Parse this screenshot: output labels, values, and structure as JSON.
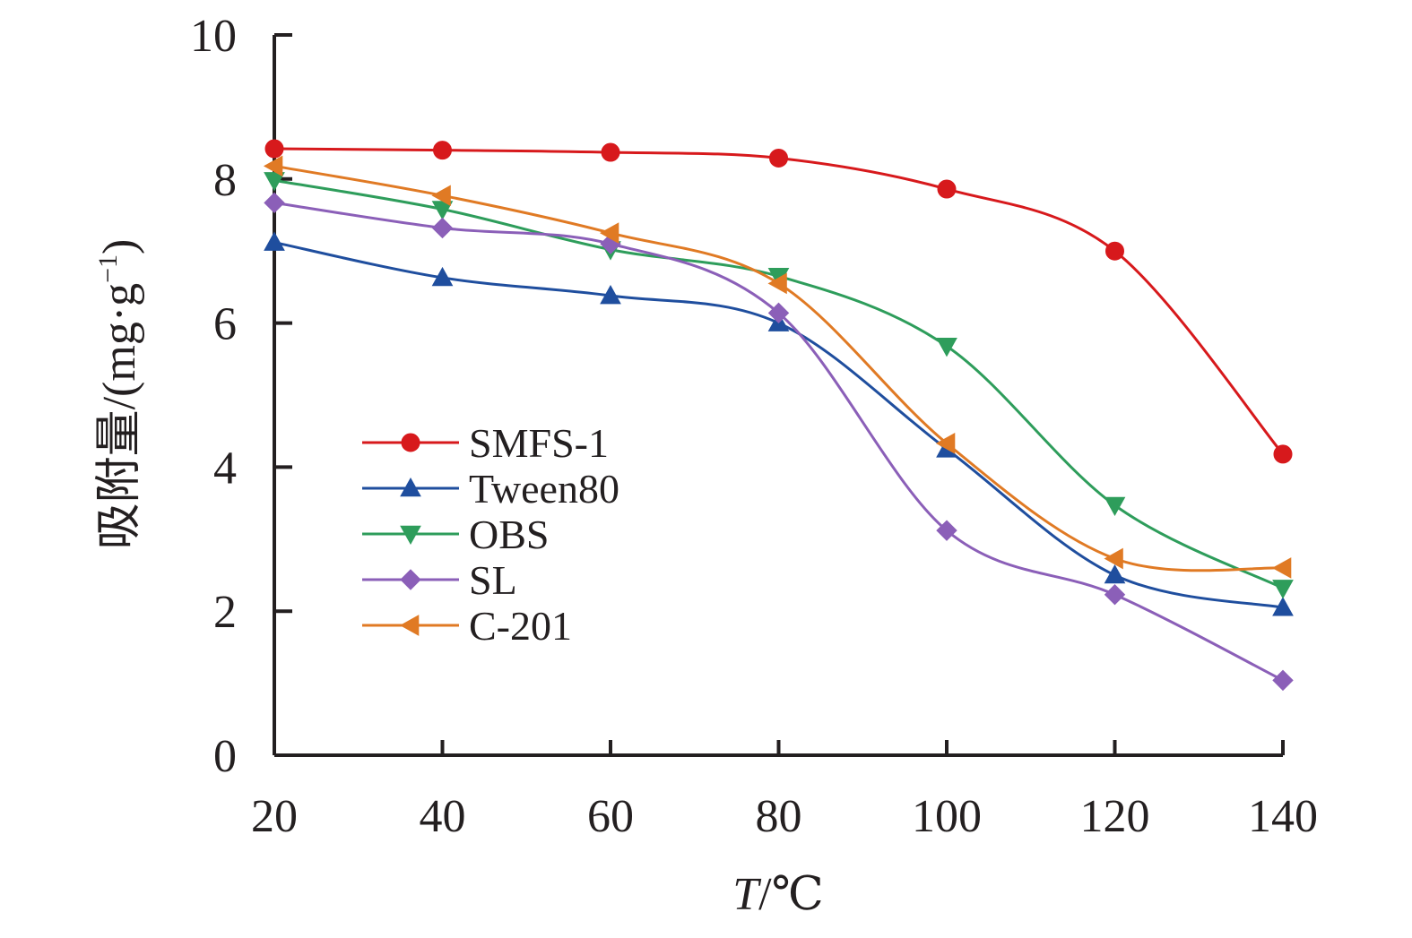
{
  "chart_data": {
    "type": "line",
    "x": [
      20,
      40,
      60,
      80,
      100,
      120,
      140
    ],
    "xlabel_italic": "T",
    "xlabel_unit": "/℃",
    "ylabel": "吸附量/(mg·g",
    "ylabel_sup": "−1",
    "ylabel_close": ")",
    "xlim": [
      20,
      140
    ],
    "ylim": [
      0,
      10
    ],
    "xticks": [
      20,
      40,
      60,
      80,
      100,
      120,
      140
    ],
    "yticks": [
      0,
      2,
      4,
      6,
      8,
      10
    ],
    "grid": false,
    "legend_position": "center-left",
    "series": [
      {
        "name": "SMFS-1",
        "color": "#d7191c",
        "marker": "circle",
        "values": [
          8.42,
          8.4,
          8.37,
          8.29,
          7.86,
          7.0,
          4.18
        ]
      },
      {
        "name": "Tween80",
        "color": "#1f4e9e",
        "marker": "triangle-up",
        "values": [
          7.12,
          6.63,
          6.38,
          6.0,
          4.25,
          2.5,
          2.05
        ]
      },
      {
        "name": "OBS",
        "color": "#2e9d5b",
        "marker": "triangle-down",
        "values": [
          7.98,
          7.58,
          7.02,
          6.65,
          5.68,
          3.47,
          2.32
        ]
      },
      {
        "name": "SL",
        "color": "#8b5fb8",
        "marker": "diamond",
        "values": [
          7.67,
          7.32,
          7.1,
          6.14,
          3.12,
          2.23,
          1.04
        ]
      },
      {
        "name": "C-201",
        "color": "#e07a24",
        "marker": "triangle-left",
        "values": [
          8.18,
          7.77,
          7.25,
          6.55,
          4.33,
          2.73,
          2.6
        ]
      }
    ]
  }
}
